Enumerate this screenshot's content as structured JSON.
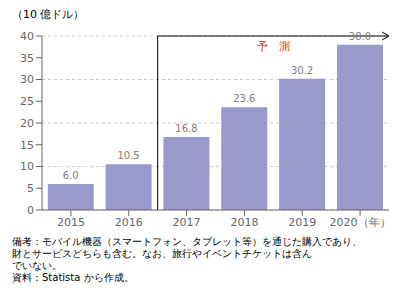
{
  "chart_data": {
    "type": "bar",
    "y_label": "（10 億ドル）",
    "categories": [
      "2015",
      "2016",
      "2017",
      "2018",
      "2019",
      "2020（年）"
    ],
    "values": [
      6.0,
      10.5,
      16.8,
      23.6,
      30.2,
      38.0
    ],
    "value_labels": [
      "6.0",
      "10.5",
      "16.8",
      "23.6",
      "30.2",
      "38.0"
    ],
    "data_labels": true,
    "color": "#9999cc",
    "ylim": [
      0,
      40
    ],
    "yticks": [
      0,
      5,
      10,
      15,
      20,
      25,
      30,
      35,
      40
    ],
    "grid": true,
    "annotations": [
      {
        "text": "予　測",
        "color": "#cc3333",
        "from": "2017"
      }
    ],
    "notes": [
      "備考：モバイル機器（スマートフォン、タブレット等）を通じた購入であり、",
      "財とサービスどちらも含む。なお、旅行やイベントチケットは含ん",
      "でいない。"
    ],
    "source": "資料：Statista から作成。"
  }
}
